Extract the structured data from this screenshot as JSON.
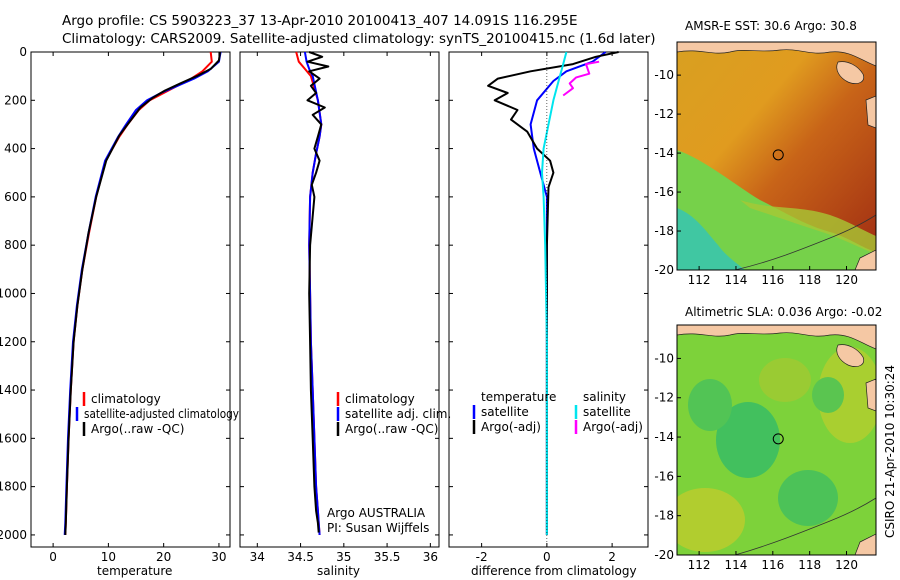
{
  "header": {
    "title_line1": "Argo profile: CS 5903223_37 13-Apr-2010 20100413_407 14.091S 116.295E",
    "title_line2": "Climatology: CARS2009. Satellite-adjusted climatology: synTS_20100415.nc (1.6d later)"
  },
  "chart_data": [
    {
      "type": "line",
      "id": "temperature",
      "xlabel": "temperature",
      "xlim": [
        -4,
        32
      ],
      "ylim": [
        0,
        2050
      ],
      "y_inverted": true,
      "xticks": [
        0,
        10,
        20,
        30
      ],
      "yticks": [
        0,
        200,
        400,
        600,
        800,
        1000,
        1200,
        1400,
        1600,
        1800,
        2000
      ],
      "legend": [
        "climatology",
        "satellite-adjusted climatology",
        "Argo(..raw -QC)"
      ],
      "series": [
        {
          "name": "climatology",
          "color": "#ff0000",
          "x": [
            28.5,
            28.7,
            27.0,
            25.0,
            22.5,
            20.0,
            17.5,
            15.5,
            13.5,
            12.0,
            9.5,
            7.8,
            6.5,
            5.3,
            4.4,
            3.7,
            3.2,
            2.8,
            2.5,
            2.3,
            2.2
          ],
          "y": [
            0,
            40,
            80,
            110,
            140,
            170,
            200,
            240,
            300,
            350,
            450,
            600,
            750,
            900,
            1050,
            1200,
            1400,
            1600,
            1800,
            1950,
            2000
          ]
        },
        {
          "name": "satellite-adjusted climatology",
          "color": "#0000ff",
          "x": [
            30.3,
            30.0,
            28.0,
            25.5,
            22.5,
            19.5,
            17.0,
            15.0,
            13.2,
            11.8,
            9.4,
            7.7,
            6.4,
            5.2,
            4.3,
            3.6,
            3.1,
            2.7,
            2.4,
            2.2,
            2.1
          ],
          "y": [
            0,
            40,
            80,
            110,
            140,
            170,
            200,
            240,
            300,
            350,
            450,
            600,
            750,
            900,
            1050,
            1200,
            1400,
            1600,
            1800,
            1950,
            2000
          ]
        },
        {
          "name": "Argo(..raw -QC)",
          "color": "#000000",
          "x": [
            30.2,
            30.0,
            28.5,
            26.0,
            23.0,
            20.2,
            18.0,
            15.8,
            13.8,
            12.0,
            9.6,
            7.8,
            6.4,
            5.3,
            4.4,
            3.7,
            3.2,
            2.8,
            2.5,
            2.3,
            2.2
          ],
          "y": [
            0,
            35,
            70,
            100,
            130,
            160,
            190,
            230,
            290,
            345,
            450,
            600,
            750,
            900,
            1050,
            1200,
            1400,
            1600,
            1800,
            1950,
            2000
          ]
        }
      ]
    },
    {
      "type": "line",
      "id": "salinity",
      "xlabel": "salinity",
      "xlim": [
        33.8,
        36.1
      ],
      "ylim": [
        0,
        2050
      ],
      "y_inverted": true,
      "xticks": [
        34,
        34.5,
        35,
        35.5,
        36
      ],
      "xtick_labels": [
        "34",
        "34.5",
        "35",
        "35.5",
        "36"
      ],
      "legend": [
        "climatology",
        "satellite adj. clim.",
        "Argo(..raw -QC)"
      ],
      "annotation": [
        "Argo AUSTRALIA",
        "PI: Susan Wijffels"
      ],
      "series": [
        {
          "name": "climatology",
          "color": "#ff0000",
          "x": [
            34.45,
            34.48,
            34.55,
            34.62,
            34.66,
            34.7,
            34.72,
            34.74,
            34.72,
            34.68,
            34.64,
            34.61,
            34.6,
            34.61,
            34.62,
            34.64,
            34.66,
            34.68,
            34.7,
            34.71,
            34.72
          ],
          "y": [
            0,
            40,
            70,
            100,
            150,
            200,
            250,
            300,
            350,
            420,
            500,
            600,
            800,
            1000,
            1200,
            1400,
            1600,
            1800,
            1900,
            1950,
            2000
          ]
        },
        {
          "name": "satellite adj. clim.",
          "color": "#0000ff",
          "x": [
            34.55,
            34.57,
            34.6,
            34.64,
            34.67,
            34.7,
            34.72,
            34.74,
            34.72,
            34.68,
            34.64,
            34.61,
            34.6,
            34.61,
            34.62,
            34.64,
            34.66,
            34.68,
            34.7,
            34.71,
            34.72
          ],
          "y": [
            0,
            40,
            70,
            100,
            150,
            200,
            250,
            300,
            350,
            420,
            500,
            600,
            800,
            1000,
            1200,
            1400,
            1600,
            1800,
            1900,
            1950,
            2000
          ]
        },
        {
          "name": "Argo(..raw -QC)",
          "color": "#000000",
          "x": [
            34.6,
            34.75,
            34.58,
            34.82,
            34.6,
            34.72,
            34.62,
            34.68,
            34.58,
            34.78,
            34.64,
            34.74,
            34.7,
            34.66,
            34.72,
            34.68,
            34.63,
            34.66,
            34.61,
            34.6,
            34.61,
            34.62,
            34.64,
            34.66,
            34.68,
            34.7,
            34.71
          ],
          "y": [
            0,
            20,
            40,
            60,
            80,
            110,
            140,
            170,
            200,
            230,
            260,
            300,
            350,
            400,
            450,
            500,
            550,
            600,
            800,
            1000,
            1200,
            1400,
            1600,
            1800,
            1900,
            1950,
            1990
          ]
        }
      ]
    },
    {
      "type": "line",
      "id": "difference",
      "xlabel": "difference from climatology",
      "xlim": [
        -3,
        3.1
      ],
      "ylim": [
        0,
        2050
      ],
      "y_inverted": true,
      "xticks": [
        -2,
        0,
        2
      ],
      "legend_headers": [
        "temperature",
        "salinity"
      ],
      "legend": [
        "satellite",
        "Argo(-adj)",
        "satellite",
        "Argo(-adj)"
      ],
      "series": [
        {
          "name": "temperature satellite",
          "color": "#0000ff",
          "x": [
            1.8,
            1.4,
            0.6,
            0.2,
            -0.3,
            -0.5,
            -0.4,
            -0.2,
            0,
            0,
            0,
            0
          ],
          "y": [
            0,
            40,
            80,
            120,
            200,
            300,
            400,
            500,
            600,
            1000,
            1500,
            2000
          ]
        },
        {
          "name": "temperature Argo(-adj)",
          "color": "#000000",
          "x": [
            2.2,
            1.5,
            0.8,
            -0.5,
            -1.5,
            -1.8,
            -1.2,
            -1.6,
            -0.9,
            -1.1,
            -0.6,
            -0.3,
            0.1,
            0.2,
            0.05,
            0,
            0
          ],
          "y": [
            0,
            20,
            50,
            80,
            110,
            140,
            170,
            200,
            240,
            280,
            330,
            400,
            450,
            500,
            560,
            800,
            2000
          ]
        },
        {
          "name": "salinity satellite",
          "color": "#00e5ee",
          "x": [
            0.6,
            0.5,
            0.4,
            0.2,
            0.05,
            -0.1,
            -0.15,
            -0.1,
            -0.05,
            0,
            0
          ],
          "y": [
            0,
            50,
            100,
            200,
            300,
            400,
            500,
            600,
            800,
            1200,
            2000
          ]
        },
        {
          "name": "salinity Argo(-adj)",
          "color": "#ff00ff",
          "x": [
            1.6,
            1.2,
            1.3,
            0.9,
            0.7,
            0.8,
            0.5
          ],
          "y": [
            40,
            50,
            90,
            105,
            130,
            150,
            180
          ]
        }
      ]
    },
    {
      "type": "heatmap",
      "id": "sst-map",
      "title": "AMSR-E SST: 30.6 Argo: 30.8",
      "xlim": [
        110.8,
        121.6
      ],
      "ylim": [
        -20,
        -8.3
      ],
      "xticks": [
        112,
        114,
        116,
        118,
        120
      ],
      "yticks": [
        -10,
        -12,
        -14,
        -16,
        -18,
        -20
      ],
      "marker": {
        "lon": 116.295,
        "lat": -14.091
      }
    },
    {
      "type": "heatmap",
      "id": "sla-map",
      "title": "Altimetric SLA: 0.036 Argo: -0.02",
      "xlim": [
        110.8,
        121.6
      ],
      "ylim": [
        -20,
        -8.3
      ],
      "xticks": [
        112,
        114,
        116,
        118,
        120
      ],
      "yticks": [
        -10,
        -12,
        -14,
        -16,
        -18,
        -20
      ],
      "marker": {
        "lon": 116.295,
        "lat": -14.091
      }
    }
  ],
  "footer": {
    "stamp": "CSIRO 21-Apr-2010 10:30:24"
  },
  "colors": {
    "climatology": "#ff0000",
    "satellite": "#0000ff",
    "argo": "#000000",
    "salinity_satellite": "#00e5ee",
    "salinity_argo": "#ff00ff",
    "land": "#f5c8a4"
  }
}
